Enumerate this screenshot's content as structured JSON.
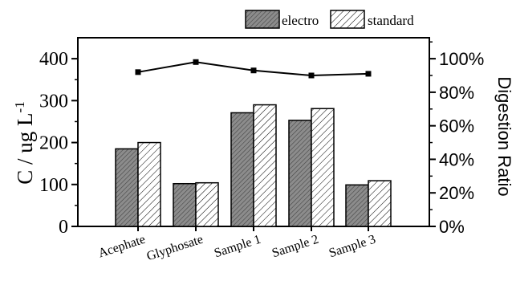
{
  "chart_data": {
    "type": "bar",
    "categories": [
      "Acephate",
      "Glyphosate",
      "Sample 1",
      "Sample 2",
      "Sample 3"
    ],
    "series": [
      {
        "name": "electro",
        "values": [
          185,
          102,
          271,
          253,
          99
        ],
        "color": "#8c8c8c",
        "pattern": "dense-hatch"
      },
      {
        "name": "standard",
        "values": [
          200,
          104,
          290,
          281,
          109
        ],
        "color": "#ffffff",
        "pattern": "diagonal-hatch"
      }
    ],
    "line_series": {
      "axis": "right",
      "values": [
        92,
        98,
        93,
        90,
        91
      ],
      "color": "#000000",
      "marker": "square"
    },
    "ylabel": "C / ug L",
    "ylabel_superscript": "-1",
    "y2label": "Digestion Ratio",
    "ylim": [
      0,
      450
    ],
    "y2lim": [
      0,
      112.5
    ],
    "yticks": [
      0,
      100,
      200,
      300,
      400
    ],
    "y2ticks": [
      0,
      20,
      40,
      60,
      80,
      100
    ],
    "y2tick_labels": [
      "0%",
      "20%",
      "40%",
      "60%",
      "80%",
      "100%"
    ],
    "legend_placement": "top-right-outside",
    "grid": false
  }
}
